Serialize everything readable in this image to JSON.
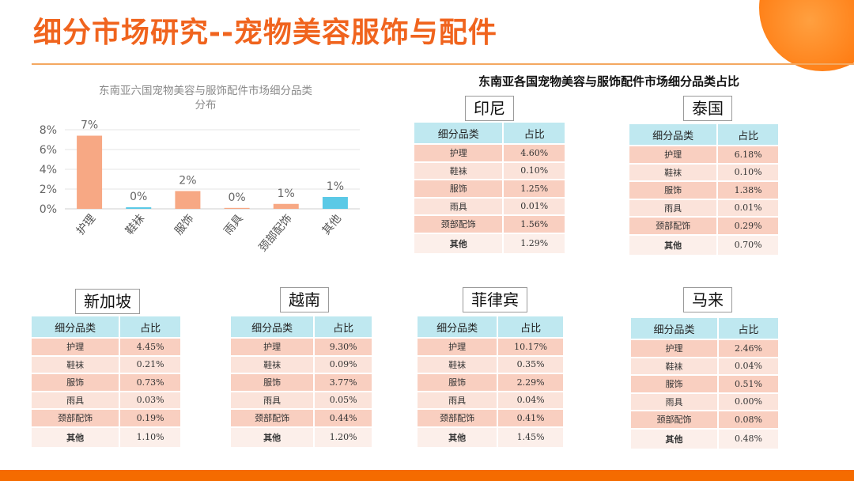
{
  "page": {
    "title": "细分市场研究--宠物美容服饰与配件",
    "right_header": "东南亚各国宠物美容与服饰配件市场细分品类占比"
  },
  "colors": {
    "accent": "#f0641e",
    "bar_orange": "#f7a884",
    "bar_blue": "#5bc9e6",
    "table_head": "#bfe8f0"
  },
  "chart_data": {
    "type": "bar",
    "title_lines": [
      "东南亚六国宠物美容与服饰配件市场细分品类",
      "分布"
    ],
    "categories": [
      "护理",
      "鞋袜",
      "服饰",
      "雨具",
      "颈部配饰",
      "其他"
    ],
    "values": [
      7.4,
      0.16,
      1.8,
      0.04,
      0.5,
      1.2
    ],
    "data_labels": [
      "7%",
      "0%",
      "2%",
      "0%",
      "1%",
      "1%"
    ],
    "bar_colors": [
      "#f7a884",
      "#5bc9e6",
      "#f7a884",
      "#f7a884",
      "#f7a884",
      "#5bc9e6"
    ],
    "y_ticks": [
      "0%",
      "2%",
      "4%",
      "6%",
      "8%"
    ],
    "y_tick_values": [
      0,
      2,
      4,
      6,
      8
    ],
    "ylim": [
      0,
      8
    ],
    "grid": true
  },
  "tables": {
    "indonesia": {
      "country": "印尼",
      "headers": [
        "细分品类",
        "占比"
      ],
      "rows": [
        [
          "护理",
          "4.60%"
        ],
        [
          "鞋袜",
          "0.10%"
        ],
        [
          "服饰",
          "1.25%"
        ],
        [
          "雨具",
          "0.01%"
        ],
        [
          "颈部配饰",
          "1.56%"
        ],
        [
          "其他",
          "1.29%"
        ]
      ]
    },
    "thailand": {
      "country": "泰国",
      "headers": [
        "细分品类",
        "占比"
      ],
      "rows": [
        [
          "护理",
          "6.18%"
        ],
        [
          "鞋袜",
          "0.10%"
        ],
        [
          "服饰",
          "1.38%"
        ],
        [
          "雨具",
          "0.01%"
        ],
        [
          "颈部配饰",
          "0.29%"
        ],
        [
          "其他",
          "0.70%"
        ]
      ]
    },
    "singapore": {
      "country": "新加坡",
      "headers": [
        "细分品类",
        "占比"
      ],
      "rows": [
        [
          "护理",
          "4.45%"
        ],
        [
          "鞋袜",
          "0.21%"
        ],
        [
          "服饰",
          "0.73%"
        ],
        [
          "雨具",
          "0.03%"
        ],
        [
          "颈部配饰",
          "0.19%"
        ],
        [
          "其他",
          "1.10%"
        ]
      ]
    },
    "vietnam": {
      "country": "越南",
      "headers": [
        "细分品类",
        "占比"
      ],
      "rows": [
        [
          "护理",
          "9.30%"
        ],
        [
          "鞋袜",
          "0.09%"
        ],
        [
          "服饰",
          "3.77%"
        ],
        [
          "雨具",
          "0.05%"
        ],
        [
          "颈部配饰",
          "0.44%"
        ],
        [
          "其他",
          "1.20%"
        ]
      ]
    },
    "philippines": {
      "country": "菲律宾",
      "headers": [
        "细分品类",
        "占比"
      ],
      "rows": [
        [
          "护理",
          "10.17%"
        ],
        [
          "鞋袜",
          "0.35%"
        ],
        [
          "服饰",
          "2.29%"
        ],
        [
          "雨具",
          "0.04%"
        ],
        [
          "颈部配饰",
          "0.41%"
        ],
        [
          "其他",
          "1.45%"
        ]
      ]
    },
    "malaysia": {
      "country": "马来",
      "headers": [
        "细分品类",
        "占比"
      ],
      "rows": [
        [
          "护理",
          "2.46%"
        ],
        [
          "鞋袜",
          "0.04%"
        ],
        [
          "服饰",
          "0.51%"
        ],
        [
          "雨具",
          "0.00%"
        ],
        [
          "颈部配饰",
          "0.08%"
        ],
        [
          "其他",
          "0.48%"
        ]
      ]
    }
  }
}
